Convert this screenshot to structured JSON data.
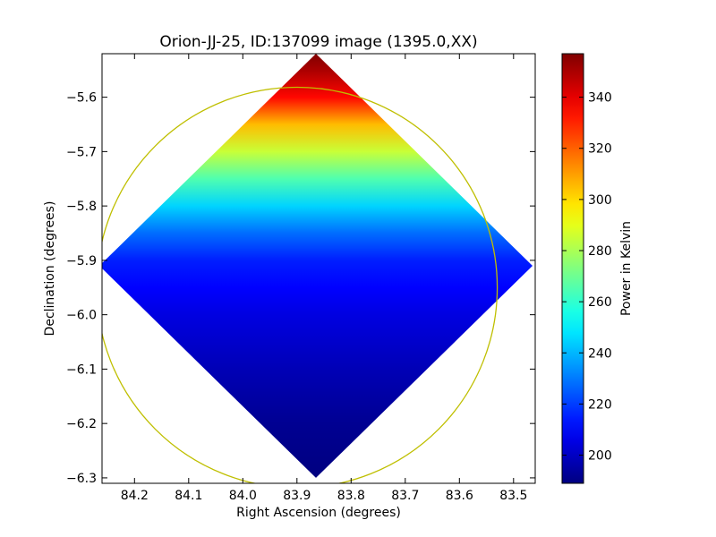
{
  "chart_data": {
    "type": "heatmap",
    "title": "Orion-JJ-25, ID:137099 image (1395.0,XX)",
    "xlabel": "Right Ascension (degrees)",
    "ylabel": "Declination (degrees)",
    "colorbar_label": "Power in Kelvin",
    "colormap": "jet",
    "x_axis": {
      "min": 84.26,
      "max": 83.46,
      "ticks": [
        84.2,
        84.1,
        84.0,
        83.9,
        83.8,
        83.7,
        83.6,
        83.5
      ],
      "tick_labels": [
        "84.2",
        "84.1",
        "84.0",
        "83.9",
        "83.8",
        "83.7",
        "83.6",
        "83.5"
      ]
    },
    "y_axis": {
      "min": -6.31,
      "max": -5.52,
      "ticks": [
        -5.6,
        -5.7,
        -5.8,
        -5.9,
        -6.0,
        -6.1,
        -6.2,
        -6.3
      ],
      "tick_labels": [
        "−5.6",
        "−5.7",
        "−5.8",
        "−5.9",
        "−6.0",
        "−6.1",
        "−6.2",
        "−6.3"
      ]
    },
    "colorbar": {
      "min": 189,
      "max": 357,
      "ticks": [
        200,
        220,
        240,
        260,
        280,
        300,
        320,
        340
      ],
      "tick_labels": [
        "200",
        "220",
        "240",
        "260",
        "280",
        "300",
        "320",
        "340"
      ]
    },
    "map_region": {
      "shape": "diamond",
      "vertices_ra_dec": [
        [
          83.865,
          -5.52
        ],
        [
          83.465,
          -5.91
        ],
        [
          83.865,
          -6.3
        ],
        [
          84.265,
          -5.91
        ]
      ]
    },
    "temperature_profile": {
      "dec": [
        -5.52,
        -5.55,
        -5.6,
        -5.65,
        -5.7,
        -5.75,
        -5.8,
        -5.85,
        -5.9,
        -5.95,
        -6.0,
        -6.1,
        -6.2,
        -6.3
      ],
      "kelvin": [
        357,
        350,
        335,
        305,
        285,
        265,
        245,
        228,
        215,
        210,
        205,
        198,
        192,
        189
      ]
    },
    "overlay_circle": {
      "center_ra": 83.9,
      "center_dec": -5.95,
      "radius_deg": 0.37,
      "color": "#bfbf00"
    },
    "grid": false,
    "legend": "none"
  }
}
